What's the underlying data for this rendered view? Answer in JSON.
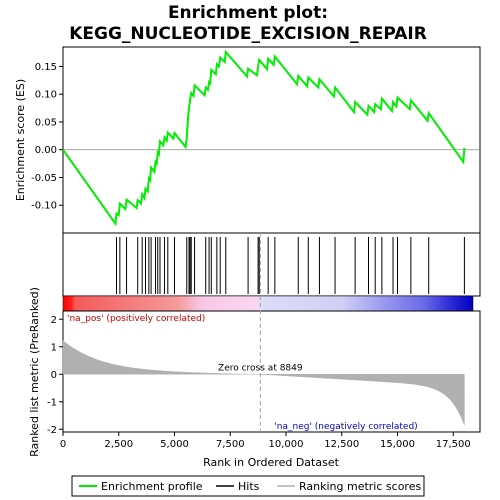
{
  "chart_data": {
    "type": "line",
    "title_line1": "Enrichment plot:",
    "title_line2": "KEGG_NUCLEOTIDE_EXCISION_REPAIR",
    "xlabel": "Rank in Ordered Dataset",
    "ylabel_top": "Enrichment score (ES)",
    "ylabel_bottom": "Ranked list metric (PreRanked)",
    "xlim": [
      0,
      18700
    ],
    "ylim_top": [
      -0.15,
      0.185
    ],
    "ylim_bottom": [
      -2.1,
      2.3
    ],
    "x_ticks": [
      0,
      2500,
      5000,
      7500,
      10000,
      12500,
      15000,
      17500
    ],
    "x_tick_labels": [
      "0",
      "2,500",
      "5,000",
      "7,500",
      "10,000",
      "12,500",
      "15,000",
      "17,500"
    ],
    "y_ticks_top": [
      -0.1,
      -0.05,
      0.0,
      0.05,
      0.1,
      0.15
    ],
    "y_tick_labels_top": [
      "-0.10",
      "-0.05",
      "0.00",
      "0.05",
      "0.10",
      "0.15"
    ],
    "y_ticks_bottom": [
      -2,
      -1,
      0,
      1,
      2
    ],
    "y_tick_labels_bottom": [
      "-2",
      "-1",
      "0",
      "1",
      "2"
    ],
    "zero_cross": 8849,
    "zero_cross_label": "Zero cross at 8849",
    "na_pos_label": "'na_pos' (positively correlated)",
    "na_neg_label": "'na_neg' (negatively correlated)",
    "total_genes": 18000,
    "hits": [
      2400,
      2550,
      2850,
      3350,
      3550,
      3700,
      3850,
      3950,
      4150,
      4250,
      4350,
      4550,
      4700,
      5000,
      5550,
      5650,
      5700,
      5750,
      5900,
      6400,
      6550,
      6650,
      6900,
      7050,
      7300,
      8300,
      8750,
      8800,
      9200,
      9500,
      10550,
      11000,
      11500,
      12200,
      13100,
      13700,
      14000,
      14300,
      14800,
      15000,
      15600,
      16400,
      18000
    ],
    "es_curve": [
      [
        0,
        0.0
      ],
      [
        2350,
        -0.133
      ],
      [
        2400,
        -0.115
      ],
      [
        2500,
        -0.118
      ],
      [
        2550,
        -0.097
      ],
      [
        2800,
        -0.107
      ],
      [
        2850,
        -0.09
      ],
      [
        3300,
        -0.105
      ],
      [
        3350,
        -0.091
      ],
      [
        3500,
        -0.097
      ],
      [
        3550,
        -0.08
      ],
      [
        3650,
        -0.087
      ],
      [
        3700,
        -0.07
      ],
      [
        3800,
        -0.075
      ],
      [
        3850,
        -0.052
      ],
      [
        3900,
        -0.055
      ],
      [
        3950,
        -0.032
      ],
      [
        4100,
        -0.04
      ],
      [
        4150,
        -0.022
      ],
      [
        4200,
        -0.025
      ],
      [
        4250,
        -0.005
      ],
      [
        4300,
        -0.008
      ],
      [
        4350,
        0.015
      ],
      [
        4500,
        0.008
      ],
      [
        4550,
        0.022
      ],
      [
        4650,
        0.016
      ],
      [
        4700,
        0.031
      ],
      [
        4950,
        0.02
      ],
      [
        5000,
        0.03
      ],
      [
        5500,
        0.005
      ],
      [
        5550,
        0.022
      ],
      [
        5600,
        0.055
      ],
      [
        5650,
        0.075
      ],
      [
        5700,
        0.09
      ],
      [
        5750,
        0.102
      ],
      [
        5850,
        0.097
      ],
      [
        5900,
        0.116
      ],
      [
        6350,
        0.098
      ],
      [
        6400,
        0.112
      ],
      [
        6500,
        0.108
      ],
      [
        6550,
        0.122
      ],
      [
        6600,
        0.12
      ],
      [
        6650,
        0.144
      ],
      [
        6850,
        0.136
      ],
      [
        6900,
        0.154
      ],
      [
        7000,
        0.15
      ],
      [
        7050,
        0.166
      ],
      [
        7250,
        0.158
      ],
      [
        7300,
        0.176
      ],
      [
        8250,
        0.132
      ],
      [
        8300,
        0.146
      ],
      [
        8700,
        0.134
      ],
      [
        8750,
        0.15
      ],
      [
        8800,
        0.162
      ],
      [
        9150,
        0.145
      ],
      [
        9200,
        0.164
      ],
      [
        9450,
        0.153
      ],
      [
        9500,
        0.168
      ],
      [
        10500,
        0.118
      ],
      [
        10550,
        0.133
      ],
      [
        10950,
        0.114
      ],
      [
        11000,
        0.13
      ],
      [
        11450,
        0.112
      ],
      [
        11500,
        0.127
      ],
      [
        12150,
        0.096
      ],
      [
        12200,
        0.112
      ],
      [
        13050,
        0.068
      ],
      [
        13100,
        0.086
      ],
      [
        13650,
        0.063
      ],
      [
        13700,
        0.079
      ],
      [
        13950,
        0.068
      ],
      [
        14000,
        0.082
      ],
      [
        14250,
        0.073
      ],
      [
        14300,
        0.092
      ],
      [
        14750,
        0.07
      ],
      [
        14800,
        0.086
      ],
      [
        14950,
        0.078
      ],
      [
        15000,
        0.094
      ],
      [
        15550,
        0.073
      ],
      [
        15600,
        0.089
      ],
      [
        16350,
        0.052
      ],
      [
        16400,
        0.066
      ],
      [
        17950,
        -0.022
      ],
      [
        18000,
        0.003
      ]
    ],
    "legend": [
      "Enrichment profile",
      "Hits",
      "Ranking metric scores"
    ],
    "colors": {
      "es_line": "#00ee00",
      "hit_line": "#000000",
      "metric_fill": "#b0b0b0",
      "zero_line": "#a0a0a0",
      "pos_text": "#cc0000",
      "neg_text": "#0000cc"
    }
  }
}
